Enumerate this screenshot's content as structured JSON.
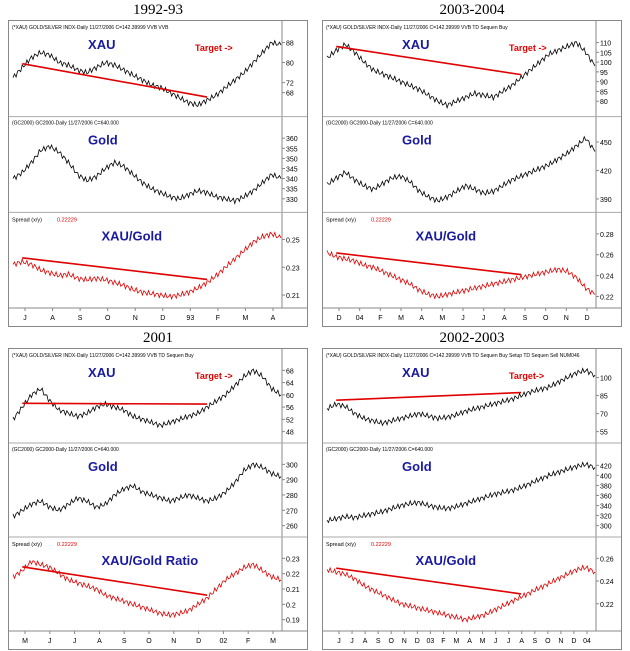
{
  "chart_data": [
    {
      "type": "line",
      "title": "1992-93",
      "panels": {
        "price_header": "(*XAU) GOLD/SILVER INDX-Daily   11/27/2006   C=142.39999   VVB   VVB",
        "price_label": "XAU",
        "target_label": "Target ->",
        "gold_header": "(GC2000) GC2000-Daily   11/27/2006   C=640.000",
        "gold_label": "Gold",
        "spread_header": "Spread (x/y)",
        "spread_value": "0.22229",
        "spread_label": "XAU/Gold"
      },
      "price_ticks": [
        "88",
        "80",
        "72",
        "68"
      ],
      "gold_ticks": [
        "360",
        "355",
        "350",
        "345",
        "340",
        "335",
        "330"
      ],
      "spread_ticks": [
        "0.25",
        "0.23",
        "0.21"
      ],
      "x_ticks": [
        "J",
        "A",
        "S",
        "O",
        "N",
        "D",
        "93",
        "F",
        "M",
        "A"
      ],
      "xau": [
        74,
        78,
        82,
        84,
        83,
        80,
        79,
        77,
        76,
        78,
        80,
        79,
        77,
        75,
        73,
        71,
        70,
        68,
        66,
        64,
        63,
        65,
        67,
        70,
        73,
        76,
        80,
        84,
        88,
        87
      ],
      "gold": [
        340,
        343,
        348,
        354,
        356,
        353,
        348,
        342,
        339,
        341,
        345,
        348,
        346,
        342,
        338,
        335,
        333,
        331,
        330,
        332,
        334,
        333,
        331,
        330,
        329,
        331,
        334,
        338,
        342,
        340
      ],
      "spread": [
        0.232,
        0.234,
        0.232,
        0.228,
        0.226,
        0.224,
        0.225,
        0.222,
        0.221,
        0.222,
        0.221,
        0.219,
        0.217,
        0.214,
        0.212,
        0.211,
        0.21,
        0.209,
        0.21,
        0.212,
        0.215,
        0.219,
        0.224,
        0.23,
        0.236,
        0.242,
        0.248,
        0.252,
        0.254,
        0.251
      ]
    },
    {
      "type": "line",
      "title": "2003-2004",
      "panels": {
        "price_header": "(*XAU) GOLD/SILVER INDX-Daily   11/27/2006   C=142.39999   VVB   TD Sequen Buy",
        "price_label": "XAU",
        "target_label": "Target ->",
        "gold_header": "(GC2000) GC2000-Daily   11/27/2006   C=640.000",
        "gold_label": "Gold",
        "spread_header": "Spread (x/y)",
        "spread_value": "0.22229",
        "spread_label": "XAU/Gold"
      },
      "price_ticks": [
        "110",
        "105",
        "100",
        "95",
        "90",
        "85",
        "80"
      ],
      "gold_ticks": [
        "450",
        "420",
        "390"
      ],
      "spread_ticks": [
        "0.28",
        "0.26",
        "0.24",
        "0.22"
      ],
      "x_ticks": [
        "D",
        "04",
        "F",
        "M",
        "A",
        "M",
        "J",
        "J",
        "A",
        "S",
        "O",
        "N",
        "D"
      ],
      "xau": [
        102,
        106,
        109,
        105,
        100,
        96,
        94,
        92,
        90,
        88,
        86,
        83,
        80,
        78,
        80,
        82,
        84,
        83,
        82,
        85,
        88,
        92,
        96,
        100,
        104,
        106,
        108,
        110,
        105,
        98
      ],
      "gold": [
        405,
        412,
        418,
        410,
        404,
        400,
        406,
        412,
        414,
        408,
        398,
        392,
        388,
        392,
        398,
        404,
        400,
        396,
        398,
        404,
        410,
        414,
        418,
        422,
        426,
        432,
        438,
        446,
        454,
        440
      ],
      "spread": [
        0.262,
        0.258,
        0.256,
        0.254,
        0.25,
        0.248,
        0.244,
        0.24,
        0.236,
        0.232,
        0.226,
        0.222,
        0.22,
        0.222,
        0.224,
        0.226,
        0.228,
        0.23,
        0.232,
        0.234,
        0.236,
        0.238,
        0.24,
        0.242,
        0.244,
        0.246,
        0.244,
        0.238,
        0.228,
        0.222
      ]
    },
    {
      "type": "line",
      "title": "2001",
      "panels": {
        "price_header": "(*XAU) GOLD/SILVER INDX-Daily   11/27/2006   C=142.39999   VVB   TD Sequen Buy",
        "price_label": "XAU",
        "target_label": "Target ->",
        "gold_header": "(GC2000) GC2000-Daily   11/27/2006   C=640.000",
        "gold_label": "Gold",
        "spread_header": "Spread (x/y)",
        "spread_value": "0.22229",
        "spread_label": "XAU/Gold Ratio"
      },
      "price_ticks": [
        "68",
        "64",
        "60",
        "56",
        "52",
        "48"
      ],
      "gold_ticks": [
        "300",
        "290",
        "280",
        "270",
        "260"
      ],
      "spread_ticks": [
        "0.23",
        "0.22",
        "0.21",
        "0.2",
        "0.19"
      ],
      "x_ticks": [
        "M",
        "J",
        "J",
        "A",
        "S",
        "O",
        "N",
        "D",
        "02",
        "F",
        "M"
      ],
      "xau": [
        52,
        56,
        60,
        62,
        58,
        55,
        54,
        53,
        54,
        56,
        57,
        56,
        55,
        53,
        52,
        51,
        50,
        51,
        52,
        53,
        54,
        56,
        58,
        60,
        63,
        66,
        68,
        66,
        62,
        60
      ],
      "gold": [
        266,
        270,
        274,
        276,
        272,
        270,
        274,
        278,
        276,
        272,
        274,
        280,
        284,
        286,
        282,
        280,
        278,
        276,
        278,
        280,
        278,
        276,
        278,
        282,
        288,
        296,
        300,
        298,
        294,
        292
      ],
      "spread": [
        0.218,
        0.222,
        0.228,
        0.226,
        0.224,
        0.22,
        0.216,
        0.214,
        0.212,
        0.21,
        0.206,
        0.204,
        0.202,
        0.2,
        0.198,
        0.196,
        0.194,
        0.193,
        0.194,
        0.196,
        0.2,
        0.204,
        0.21,
        0.216,
        0.22,
        0.224,
        0.226,
        0.222,
        0.218,
        0.216
      ]
    },
    {
      "type": "line",
      "title": "2002-2003",
      "panels": {
        "price_header": "(*XAU) GOLD/SILVER INDX-Daily   11/27/2006   C=142.39999   VVB   TD Sequen Buy Setup   TD Sequen Sell   NUM046",
        "price_label": "XAU",
        "target_label": "Target->",
        "gold_header": "(GC2000) GC2000-Daily   11/27/2006   C=640.000",
        "gold_label": "Gold",
        "spread_header": "Spread (x/y)",
        "spread_value": "0.22229",
        "spread_label": "XAU/Gold"
      },
      "price_ticks": [
        "100",
        "85",
        "70",
        "55"
      ],
      "gold_ticks": [
        "420",
        "400",
        "380",
        "360",
        "340",
        "320",
        "300"
      ],
      "spread_ticks": [
        "0.26",
        "0.24",
        "0.22"
      ],
      "x_ticks": [
        "J",
        "J",
        "A",
        "S",
        "O",
        "N",
        "D",
        "03",
        "F",
        "M",
        "A",
        "M",
        "J",
        "J",
        "A",
        "S",
        "O",
        "N",
        "D",
        "04"
      ],
      "xau": [
        74,
        78,
        76,
        70,
        66,
        64,
        62,
        64,
        66,
        68,
        70,
        68,
        66,
        67,
        69,
        72,
        74,
        76,
        78,
        80,
        82,
        85,
        88,
        90,
        92,
        96,
        100,
        104,
        106,
        102
      ],
      "gold": [
        310,
        314,
        318,
        316,
        320,
        324,
        328,
        334,
        340,
        344,
        346,
        340,
        336,
        334,
        338,
        344,
        350,
        356,
        362,
        366,
        370,
        376,
        384,
        392,
        400,
        406,
        412,
        418,
        422,
        416
      ],
      "spread": [
        0.25,
        0.248,
        0.246,
        0.242,
        0.236,
        0.232,
        0.228,
        0.224,
        0.22,
        0.218,
        0.216,
        0.214,
        0.212,
        0.21,
        0.208,
        0.206,
        0.208,
        0.21,
        0.214,
        0.218,
        0.222,
        0.226,
        0.23,
        0.234,
        0.238,
        0.242,
        0.246,
        0.25,
        0.252,
        0.248
      ]
    }
  ]
}
